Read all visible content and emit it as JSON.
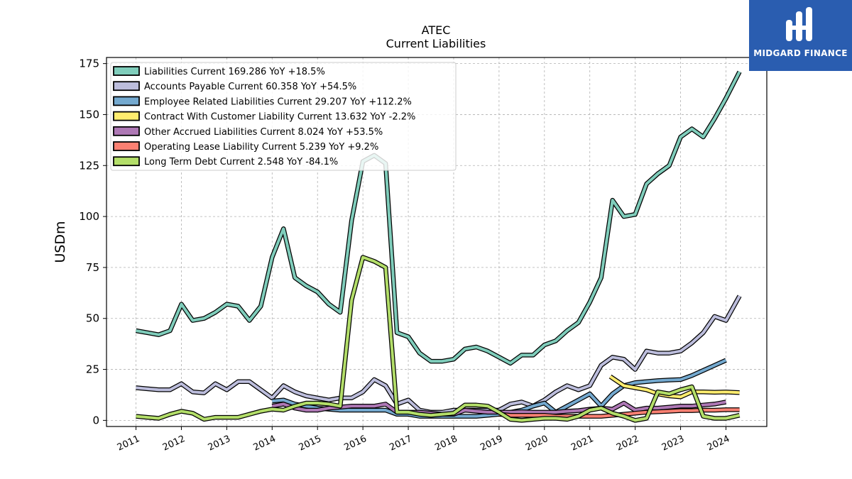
{
  "logo": {
    "text": "MIDGARD FINANCE",
    "bg_color": "#2a5db0"
  },
  "chart_data": {
    "type": "line",
    "title": "ATEC",
    "subtitle": "Current  Liabilities",
    "ylabel": "USDm",
    "xlabel": "",
    "ylim": [
      -3,
      178
    ],
    "xlim": [
      2010.35,
      2024.9
    ],
    "yticks": [
      0,
      25,
      50,
      75,
      100,
      125,
      150,
      175
    ],
    "xticks": [
      "2011",
      "2012",
      "2013",
      "2014",
      "2015",
      "2016",
      "2017",
      "2018",
      "2019",
      "2020",
      "2021",
      "2022",
      "2023",
      "2024"
    ],
    "grid": true,
    "legend_position": "top-left",
    "series": [
      {
        "name": "Liabilities Current",
        "legend": "Liabilities Current  169.286 YoY +18.5%",
        "color": "#7fcdbb",
        "x": [
          2011,
          2011.25,
          2011.5,
          2011.75,
          2012,
          2012.25,
          2012.5,
          2012.75,
          2013,
          2013.25,
          2013.5,
          2013.75,
          2014,
          2014.25,
          2014.5,
          2014.75,
          2015,
          2015.25,
          2015.5,
          2015.75,
          2016,
          2016.25,
          2016.5,
          2016.75,
          2017,
          2017.25,
          2017.5,
          2017.75,
          2018,
          2018.25,
          2018.5,
          2018.75,
          2019,
          2019.25,
          2019.5,
          2019.75,
          2020,
          2020.25,
          2020.5,
          2020.75,
          2021,
          2021.25,
          2021.5,
          2021.75,
          2022,
          2022.25,
          2022.5,
          2022.75,
          2023,
          2023.25,
          2023.5,
          2023.75,
          2024,
          2024.3
        ],
        "y": [
          44,
          43,
          42,
          44,
          57,
          49,
          50,
          53,
          57,
          56,
          49,
          56,
          80,
          94,
          70,
          66,
          63,
          57,
          53,
          98,
          127,
          130,
          126,
          43,
          41,
          33,
          29,
          29,
          30,
          35,
          36,
          34,
          31,
          28,
          32,
          32,
          37,
          39,
          44,
          48,
          58,
          70,
          108,
          100,
          101,
          116,
          121,
          125,
          139,
          143,
          139,
          148,
          158,
          171
        ]
      },
      {
        "name": "Accounts Payable Current",
        "legend": "Accounts Payable Current  60.358 YoY +54.5%",
        "color": "#bcbddc",
        "x": [
          2011,
          2011.25,
          2011.5,
          2011.75,
          2012,
          2012.25,
          2012.5,
          2012.75,
          2013,
          2013.25,
          2013.5,
          2013.75,
          2014,
          2014.25,
          2014.5,
          2014.75,
          2015,
          2015.25,
          2015.5,
          2015.75,
          2016,
          2016.25,
          2016.5,
          2016.75,
          2017,
          2017.25,
          2017.5,
          2017.75,
          2018,
          2018.25,
          2018.5,
          2018.75,
          2019,
          2019.25,
          2019.5,
          2019.75,
          2020,
          2020.25,
          2020.5,
          2020.75,
          2021,
          2021.25,
          2021.5,
          2021.75,
          2022,
          2022.25,
          2022.5,
          2022.75,
          2023,
          2023.25,
          2023.5,
          2023.75,
          2024,
          2024.3
        ],
        "y": [
          16,
          15.5,
          15,
          15,
          18,
          14,
          13.5,
          18,
          15,
          19,
          19,
          15,
          11,
          17,
          14,
          12,
          11,
          10,
          11,
          11,
          14,
          20,
          17,
          8,
          10,
          5,
          4,
          4,
          5,
          5,
          5,
          5,
          5,
          8,
          9,
          7,
          10,
          14,
          17,
          15,
          17,
          27,
          31,
          30,
          25,
          34,
          33,
          33,
          34,
          38,
          43,
          51,
          49,
          61
        ]
      },
      {
        "name": "Employee Related Liabilities Current",
        "legend": "Employee Related Liabilities Current  29.207 YoY +112.2%",
        "color": "#74a9cf",
        "x": [
          2014,
          2014.25,
          2014.5,
          2014.75,
          2015,
          2015.25,
          2015.5,
          2015.75,
          2016,
          2016.25,
          2016.5,
          2016.75,
          2017,
          2017.25,
          2017.5,
          2017.75,
          2018,
          2018.25,
          2018.5,
          2018.75,
          2019,
          2019.25,
          2019.5,
          2019.75,
          2020,
          2020.25,
          2020.5,
          2020.75,
          2021,
          2021.25,
          2021.5,
          2021.75,
          2022,
          2022.25,
          2022.5,
          2022.75,
          2023,
          2023.25,
          2023.5,
          2023.75,
          2024
        ],
        "y": [
          9.5,
          10,
          8,
          7,
          6,
          5.5,
          5,
          5,
          5,
          5,
          5,
          3,
          3,
          2,
          2,
          2,
          2,
          2,
          2,
          2.5,
          3,
          4,
          5,
          7,
          8.5,
          4,
          7,
          10,
          13,
          7,
          13,
          17,
          18.5,
          19,
          19.5,
          19.8,
          20,
          22,
          24.5,
          27,
          29.5
        ]
      },
      {
        "name": "Contract With Customer Liability Current",
        "legend": "Contract With Customer Liability Current  13.632 YoY -2.2%",
        "color": "#ffed6f",
        "x": [
          2021.45,
          2021.75,
          2022,
          2022.25,
          2022.5,
          2022.75,
          2023,
          2023.25,
          2023.5,
          2023.75,
          2024,
          2024.3
        ],
        "y": [
          21.5,
          17,
          16,
          15,
          13,
          12,
          11.5,
          14,
          14,
          13.8,
          13.9,
          13.6
        ]
      },
      {
        "name": "Other Accrued Liabilities Current",
        "legend": "Other Accrued Liabilities Current  8.024 YoY +53.5%",
        "color": "#ae78b5",
        "x": [
          2014,
          2014.25,
          2014.5,
          2014.75,
          2015,
          2015.25,
          2015.5,
          2015.75,
          2016,
          2016.25,
          2016.5,
          2016.75,
          2017,
          2017.25,
          2017.5,
          2017.75,
          2018,
          2018.25,
          2018.5,
          2018.75,
          2019,
          2019.25,
          2019.5,
          2019.75,
          2020,
          2020.25,
          2020.5,
          2020.75,
          2021,
          2021.25,
          2021.5,
          2021.75,
          2022,
          2022.25,
          2022.5,
          2022.75,
          2023,
          2023.25,
          2023.5,
          2023.75,
          2024
        ],
        "y": [
          7,
          8,
          6,
          5,
          5,
          6,
          6.5,
          7,
          7,
          7,
          8,
          4,
          4,
          4,
          3.5,
          3,
          3,
          5,
          4.5,
          4,
          4,
          4,
          4.2,
          4,
          4,
          4,
          4.5,
          4.8,
          5.5,
          6,
          5.5,
          8.5,
          5,
          6,
          6,
          6.5,
          7,
          7,
          7.5,
          8,
          9
        ]
      },
      {
        "name": "Operating Lease Liability Current",
        "legend": "Operating Lease Liability Current  5.239 YoY +9.2%",
        "color": "#fb8072",
        "x": [
          2019,
          2019.25,
          2019.5,
          2019.75,
          2020,
          2020.25,
          2020.5,
          2020.75,
          2021,
          2021.25,
          2021.5,
          2021.75,
          2022,
          2022.25,
          2022.5,
          2022.75,
          2023,
          2023.25,
          2023.5,
          2023.75,
          2024,
          2024.3
        ],
        "y": [
          3,
          2.5,
          2.5,
          2.5,
          2.5,
          2,
          2,
          2,
          2,
          2,
          2.5,
          3,
          3.5,
          4,
          4.2,
          4.5,
          4.8,
          4.8,
          5,
          5,
          5.2,
          5.2
        ]
      },
      {
        "name": "Long Term Debt Current",
        "legend": "Long Term Debt Current  2.548 YoY -84.1%",
        "color": "#b3de69",
        "x": [
          2011,
          2011.25,
          2011.5,
          2011.75,
          2012,
          2012.25,
          2012.5,
          2012.75,
          2013,
          2013.25,
          2013.5,
          2013.75,
          2014,
          2014.25,
          2014.5,
          2014.75,
          2015,
          2015.25,
          2015.5,
          2015.75,
          2016,
          2016.25,
          2016.5,
          2016.75,
          2017,
          2017.25,
          2017.5,
          2017.75,
          2018,
          2018.25,
          2018.5,
          2018.75,
          2019,
          2019.25,
          2019.5,
          2019.75,
          2020,
          2020.25,
          2020.5,
          2020.75,
          2021,
          2021.25,
          2021.5,
          2021.75,
          2022,
          2022.25,
          2022.5,
          2022.75,
          2023,
          2023.25,
          2023.5,
          2023.75,
          2024,
          2024.3
        ],
        "y": [
          2,
          1.5,
          1,
          3,
          4.5,
          3.5,
          0.5,
          1.5,
          1.5,
          1.5,
          3,
          4.5,
          5.5,
          5,
          7,
          8.5,
          8.5,
          8,
          7,
          59,
          80,
          78,
          75,
          4,
          4,
          3,
          2.5,
          3,
          3.5,
          7.5,
          7.5,
          7,
          4,
          0.5,
          0,
          0.5,
          1,
          1,
          0.5,
          2,
          5,
          6,
          3.5,
          2,
          0,
          1,
          14,
          13,
          15,
          16.5,
          2,
          1,
          1,
          2.5
        ]
      }
    ]
  }
}
